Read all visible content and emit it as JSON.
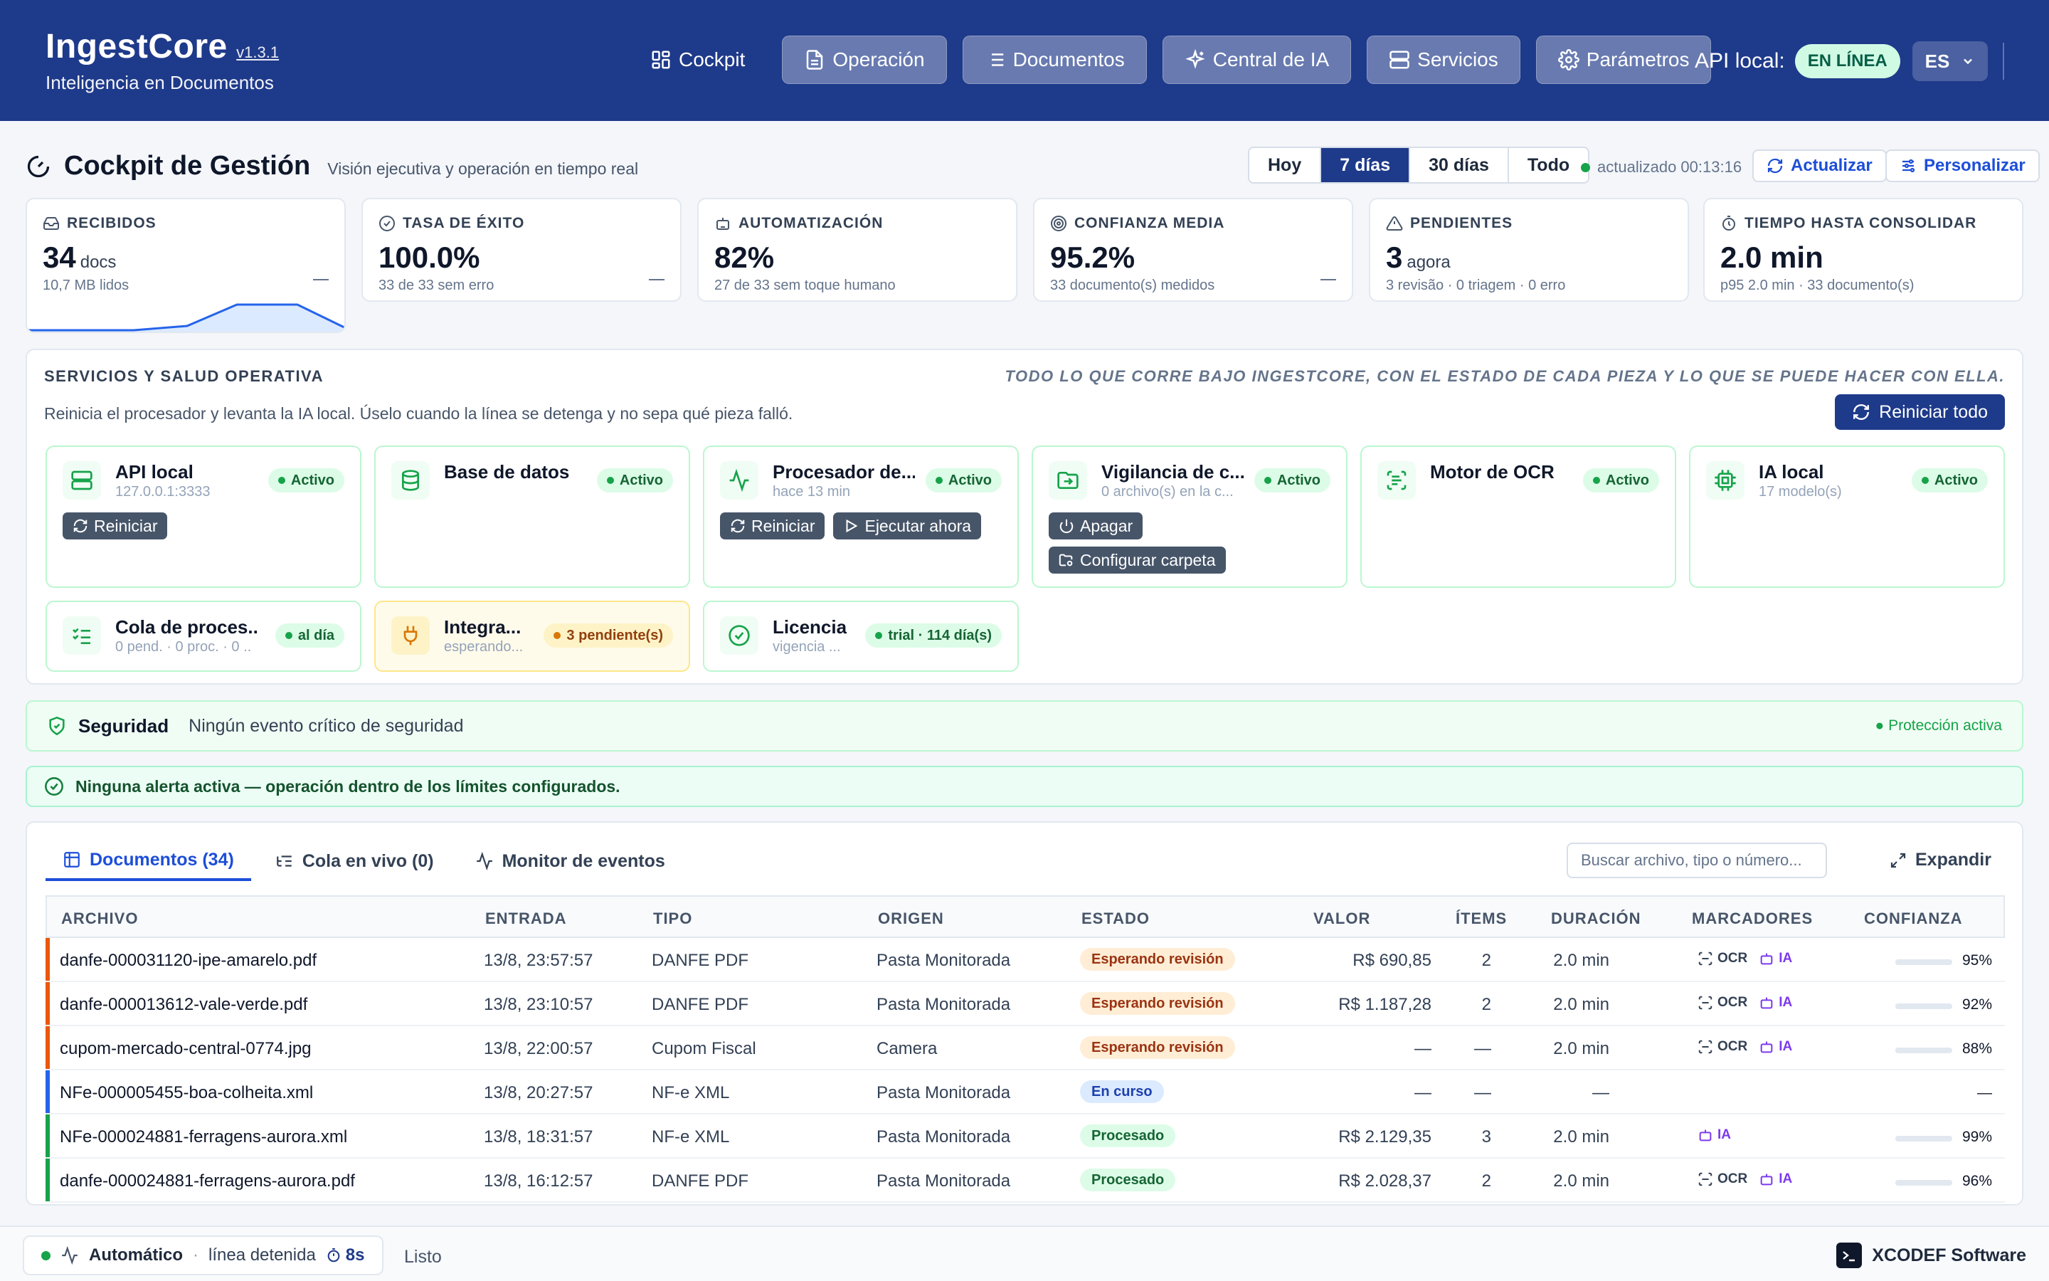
{
  "app": {
    "name": "IngestCore",
    "version": "v1.3.1",
    "tagline": "Inteligencia en Documentos"
  },
  "nav": {
    "items": [
      {
        "label": "Cockpit",
        "icon": "grid-icon"
      },
      {
        "label": "Operación",
        "icon": "document-icon"
      },
      {
        "label": "Documentos",
        "icon": "list-icon"
      },
      {
        "label": "Central de IA",
        "icon": "sparkles-icon"
      },
      {
        "label": "Servicios",
        "icon": "server-icon"
      },
      {
        "label": "Parámetros",
        "icon": "gear-icon"
      }
    ],
    "api_label": "API local:",
    "api_status": "EN LÍNEA",
    "language": "ES"
  },
  "page": {
    "title": "Cockpit de Gestión",
    "subtitle": "Visión ejecutiva y operación en tiempo real",
    "ranges": [
      "Hoy",
      "7 días",
      "30 días",
      "Todo"
    ],
    "active_range": "7 días",
    "updated": "actualizado 00:13:16",
    "refresh_label": "Actualizar",
    "customize_label": "Personalizar"
  },
  "kpis": [
    {
      "label": "RECIBIDOS",
      "value": "34",
      "unit": "docs",
      "sub": "10,7 MB lidos",
      "icon": "inbox-icon"
    },
    {
      "label": "TASA DE ÉXITO",
      "value": "100.0%",
      "unit": "",
      "sub": "33 de 33 sem erro",
      "icon": "check-circle-icon"
    },
    {
      "label": "AUTOMATIZACIÓN",
      "value": "82%",
      "unit": "",
      "sub": "27 de 33 sem toque humano",
      "icon": "robot-icon"
    },
    {
      "label": "CONFIANZA MEDIA",
      "value": "95.2%",
      "unit": "",
      "sub": "33 documento(s) medidos",
      "icon": "target-icon"
    },
    {
      "label": "PENDIENTES",
      "value": "3",
      "unit": "agora",
      "sub": "3 revisão · 0 triagem · 0 erro",
      "icon": "alert-triangle-icon"
    },
    {
      "label": "TIEMPO HASTA CONSOLIDAR",
      "value": "2.0 min",
      "unit": "",
      "sub": "p95 2.0 min · 33 documento(s)",
      "icon": "timer-icon"
    }
  ],
  "services_panel": {
    "title": "SERVICIOS Y SALUD OPERATIVA",
    "note": "TODO LO QUE CORRE BAJO INGESTCORE, CON EL ESTADO DE CADA PIEZA Y LO QUE SE PUEDE HACER CON ELLA.",
    "description": "Reinicia el procesador y levanta la IA local. Úselo cuando la línea se detenga y no sepa qué pieza falló.",
    "restart_all": "Reiniciar todo",
    "services": [
      {
        "name": "API local",
        "sub": "127.0.0.1:3333",
        "badge": "Activo",
        "icon": "server-icon",
        "actions": [
          "Reiniciar"
        ]
      },
      {
        "name": "Base de datos",
        "sub": "",
        "badge": "Activo",
        "icon": "database-icon",
        "actions": []
      },
      {
        "name": "Procesador de...",
        "sub": "hace 13 min",
        "badge": "Activo",
        "icon": "activity-icon",
        "actions": [
          "Reiniciar",
          "Ejecutar ahora"
        ]
      },
      {
        "name": "Vigilancia de c...",
        "sub": "0 archivo(s) en la c...",
        "badge": "Activo",
        "icon": "folder-in-icon",
        "actions": [
          "Apagar",
          "Configurar carpeta"
        ]
      },
      {
        "name": "Motor de OCR",
        "sub": "",
        "badge": "Activo",
        "icon": "scan-text-icon",
        "actions": []
      },
      {
        "name": "IA local",
        "sub": "17 modelo(s)",
        "badge": "Activo",
        "icon": "cpu-icon",
        "actions": []
      },
      {
        "name": "Cola de proces...",
        "sub": "0 pend. · 0 proc. · 0 ...",
        "badge": "al día",
        "icon": "list-checks-icon",
        "actions": []
      },
      {
        "name": "Integra...",
        "sub": "esperando...",
        "badge": "3 pendiente(s)",
        "icon": "plug-icon",
        "actions": [],
        "warn": true
      },
      {
        "name": "Licencia",
        "sub": "vigencia ...",
        "badge": "trial · 114 día(s)",
        "icon": "badge-check-icon",
        "actions": []
      }
    ]
  },
  "security": {
    "title": "Seguridad",
    "text": "Ningún evento crítico de seguridad",
    "status": "Protección activa"
  },
  "alert": {
    "text": "Ninguna alerta activa — operación dentro de los límites configurados."
  },
  "documents": {
    "tabs": [
      {
        "label": "Documentos (34)",
        "icon": "table-icon"
      },
      {
        "label": "Cola en vivo (0)",
        "icon": "list-tree-icon"
      },
      {
        "label": "Monitor de eventos",
        "icon": "activity-icon"
      }
    ],
    "search_placeholder": "Buscar archivo, tipo o número...",
    "expand_label": "Expandir",
    "columns": [
      "ARCHIVO",
      "ENTRADA",
      "TIPO",
      "ORIGEN",
      "ESTADO",
      "VALOR",
      "ÍTEMS",
      "DURACIÓN",
      "MARCADORES",
      "CONFIANZA"
    ],
    "rows": [
      {
        "file": "danfe-000031120-ipe-amarelo.pdf",
        "entry": "13/8, 23:57:57",
        "type": "DANFE PDF",
        "origin": "Pasta Monitorada",
        "status": "Esperando revisión",
        "status_kind": "wait",
        "value": "R$ 690,85",
        "items": "2",
        "duration": "2.0 min",
        "markers": [
          "OCR",
          "IA"
        ],
        "confidence": "95%",
        "confidence_fraction": 0.95,
        "accent": "#ea580c"
      },
      {
        "file": "danfe-000013612-vale-verde.pdf",
        "entry": "13/8, 23:10:57",
        "type": "DANFE PDF",
        "origin": "Pasta Monitorada",
        "status": "Esperando revisión",
        "status_kind": "wait",
        "value": "R$ 1.187,28",
        "items": "2",
        "duration": "2.0 min",
        "markers": [
          "OCR",
          "IA"
        ],
        "confidence": "92%",
        "confidence_fraction": 0.92,
        "accent": "#ea580c"
      },
      {
        "file": "cupom-mercado-central-0774.jpg",
        "entry": "13/8, 22:00:57",
        "type": "Cupom Fiscal",
        "origin": "Camera",
        "status": "Esperando revisión",
        "status_kind": "wait",
        "value": "—",
        "items": "—",
        "duration": "2.0 min",
        "markers": [
          "OCR",
          "IA"
        ],
        "confidence": "88%",
        "confidence_fraction": 0.88,
        "accent": "#ea580c"
      },
      {
        "file": "NFe-000005455-boa-colheita.xml",
        "entry": "13/8, 20:27:57",
        "type": "NF-e XML",
        "origin": "Pasta Monitorada",
        "status": "En curso",
        "status_kind": "run",
        "value": "—",
        "items": "—",
        "duration": "—",
        "markers": [],
        "confidence": "—",
        "confidence_fraction": null,
        "accent": "#2563eb"
      },
      {
        "file": "NFe-000024881-ferragens-aurora.xml",
        "entry": "13/8, 18:31:57",
        "type": "NF-e XML",
        "origin": "Pasta Monitorada",
        "status": "Procesado",
        "status_kind": "done",
        "value": "R$ 2.129,35",
        "items": "3",
        "duration": "2.0 min",
        "markers": [
          "IA"
        ],
        "confidence": "99%",
        "confidence_fraction": 0.99,
        "accent": "#16a34a"
      },
      {
        "file": "danfe-000024881-ferragens-aurora.pdf",
        "entry": "13/8, 16:12:57",
        "type": "DANFE PDF",
        "origin": "Pasta Monitorada",
        "status": "Procesado",
        "status_kind": "done",
        "value": "R$ 2.028,37",
        "items": "2",
        "duration": "2.0 min",
        "markers": [
          "OCR",
          "IA"
        ],
        "confidence": "96%",
        "confidence_fraction": 0.96,
        "accent": "#16a34a"
      }
    ]
  },
  "footer": {
    "mode": "Automático",
    "separator": "·",
    "line_state": "línea detenida",
    "timer": "8s",
    "ready": "Listo",
    "vendor": "XCODEF Software"
  },
  "colors": {
    "header_bg": "#1e3a8a",
    "accent": "#1d4ed8",
    "success": "#16a34a",
    "warning": "#ea580c",
    "ia_marker": "#7c3aed"
  }
}
